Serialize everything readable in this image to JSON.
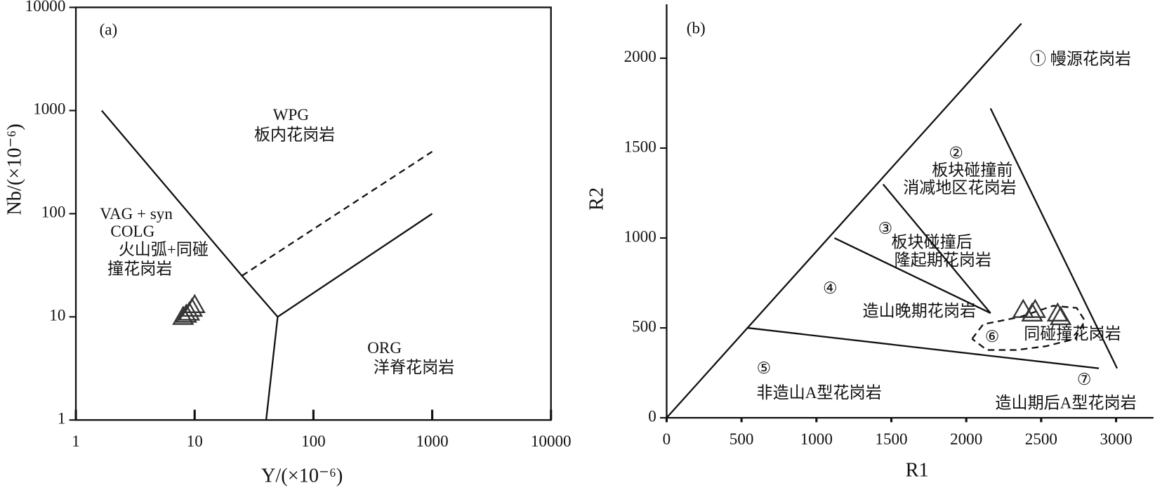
{
  "chart_data": [
    {
      "type": "scatter",
      "xscale": "log",
      "yscale": "log",
      "xlabel": "Y/(×10⁻⁶)",
      "ylabel": "Nb/(×10⁻⁶)",
      "xlim": [
        1,
        10000
      ],
      "ylim": [
        1,
        10000
      ],
      "xticks": [
        1,
        10,
        100,
        1000,
        10000
      ],
      "yticks": [
        1,
        10,
        100,
        1000,
        10000
      ],
      "x": [
        8,
        8.5,
        9,
        9.5,
        10
      ],
      "values": [
        10,
        10.5,
        11,
        12,
        13
      ],
      "color": "#333333",
      "boundaries": [
        {
          "x": [
            1.65,
            25,
            50,
            1000
          ],
          "y": [
            1000,
            25,
            10,
            100
          ],
          "dashed": false
        },
        {
          "x": [
            50,
            40
          ],
          "y": [
            10,
            1
          ],
          "dashed": false
        },
        {
          "x": [
            25,
            1000
          ],
          "y": [
            25,
            400
          ],
          "dashed": true
        }
      ],
      "annotations": [
        "(a)",
        "WPG",
        "板内花岗岩",
        "VAG + syn",
        "COLG",
        "火山弧+同碰",
        "撞花岗岩",
        "ORG",
        "洋脊花岗岩"
      ]
    },
    {
      "type": "scatter",
      "xlabel": "R1",
      "ylabel": "R2",
      "xlim": [
        0,
        3250
      ],
      "ylim": [
        0,
        2300
      ],
      "xticks": [
        0,
        500,
        1000,
        1500,
        2000,
        2500,
        3000
      ],
      "yticks": [
        0,
        500,
        1000,
        1500,
        2000
      ],
      "x": [
        2380,
        2440,
        2460,
        2610,
        2630
      ],
      "values": [
        600,
        580,
        600,
        580,
        560
      ],
      "color": "#333333",
      "boundaries": [
        {
          "x": [
            0,
            2368
          ],
          "y": [
            0,
            2193
          ],
          "dashed": false
        },
        {
          "x": [
            2162,
            3007
          ],
          "y": [
            1721,
            275
          ],
          "dashed": false
        },
        {
          "x": [
            1445,
            2162
          ],
          "y": [
            1299,
            582
          ],
          "dashed": false
        },
        {
          "x": [
            1120,
            2162
          ],
          "y": [
            1000,
            582
          ],
          "dashed": false
        },
        {
          "x": [
            540,
            2885
          ],
          "y": [
            500,
            275
          ],
          "dashed": false
        },
        {
          "x": [
            2039,
            2113,
            2359,
            2580,
            2737,
            2791,
            2727,
            2531,
            2334,
            2138,
            2039
          ],
          "y": [
            439,
            520,
            561,
            623,
            611,
            541,
            439,
            398,
            377,
            377,
            439
          ],
          "dashed": true
        }
      ],
      "annotations": [
        "(b)",
        "① 幔源花岗岩",
        "②",
        "板块碰撞前",
        "消减地区花岗岩",
        "③",
        "板块碰撞后",
        "隆起期花岗岩",
        "④",
        "造山晚期花岗岩",
        "⑤",
        "非造山A型花岗岩",
        "⑥",
        "同碰撞花岗岩",
        "⑦",
        "造山期后A型花岗岩"
      ]
    }
  ]
}
